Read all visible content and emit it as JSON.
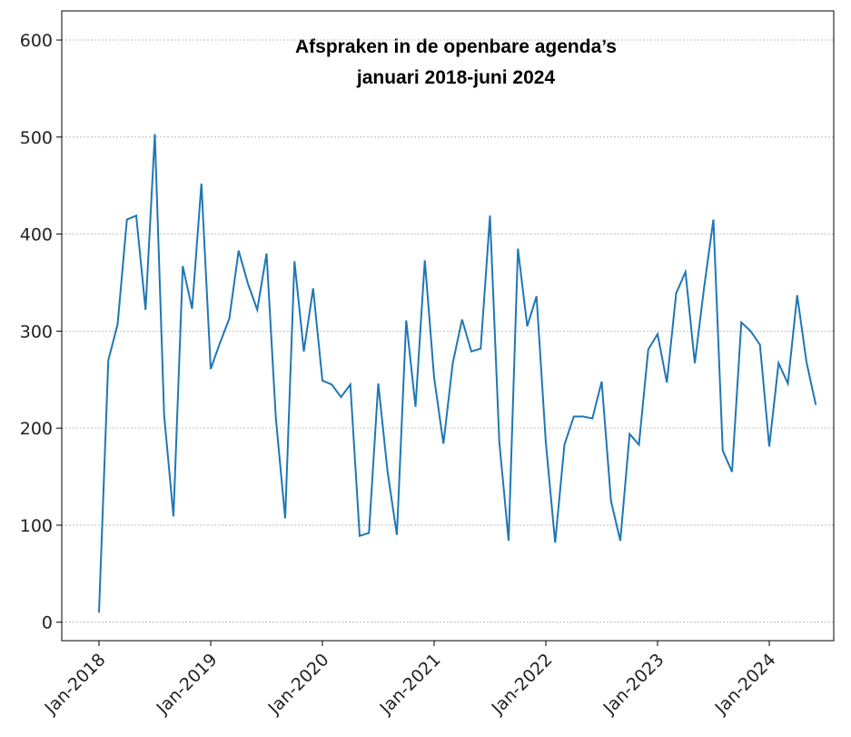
{
  "chart_data": {
    "type": "line",
    "title": [
      "Afspraken in de openbare agenda’s",
      "januari 2018-juni 2024"
    ],
    "categories": [
      "Jan-2018",
      null,
      null,
      null,
      null,
      null,
      null,
      null,
      null,
      null,
      null,
      null,
      "Jan-2019",
      null,
      null,
      null,
      null,
      null,
      null,
      null,
      null,
      null,
      null,
      null,
      "Jan-2020",
      null,
      null,
      null,
      null,
      null,
      null,
      null,
      null,
      null,
      null,
      null,
      "Jan-2021",
      null,
      null,
      null,
      null,
      null,
      null,
      null,
      null,
      null,
      null,
      null,
      "Jan-2022",
      null,
      null,
      null,
      null,
      null,
      null,
      null,
      null,
      null,
      null,
      null,
      "Jan-2023",
      null,
      null,
      null,
      null,
      null,
      null,
      null,
      null,
      null,
      null,
      null,
      "Jan-2024",
      null,
      null,
      null,
      null,
      null
    ],
    "series": [
      {
        "name": "Afspraken",
        "color": "#1f77b4",
        "values": [
          10,
          270,
          307,
          415,
          419,
          322,
          503,
          213,
          109,
          367,
          323,
          452,
          261,
          288,
          313,
          383,
          349,
          322,
          380,
          210,
          107,
          372,
          279,
          344,
          249,
          245,
          232,
          245,
          89,
          92,
          246,
          155,
          90,
          311,
          222,
          373,
          252,
          184,
          267,
          312,
          279,
          282,
          419,
          186,
          84,
          385,
          305,
          336,
          185,
          82,
          183,
          212,
          212,
          210,
          248,
          125,
          84,
          194,
          183,
          281,
          297,
          247,
          339,
          361,
          267,
          345,
          415,
          177,
          155,
          309,
          300,
          286,
          181,
          267,
          246,
          337,
          268,
          224
        ]
      }
    ],
    "ylim": [
      -19,
      630
    ],
    "yticks": [
      0,
      100,
      200,
      300,
      400,
      500,
      600
    ],
    "grid": true
  }
}
